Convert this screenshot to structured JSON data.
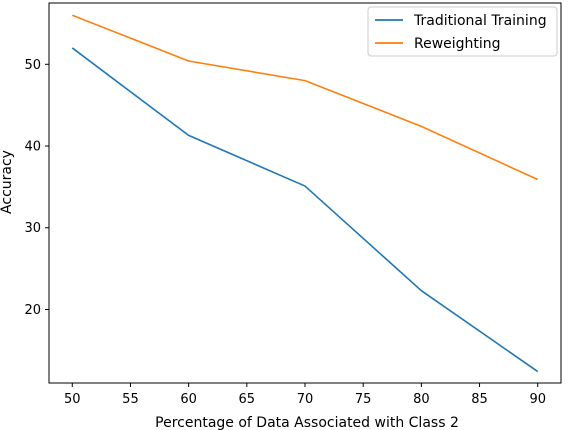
{
  "chart_data": {
    "type": "line",
    "title": "",
    "xlabel": "Percentage of Data Associated with Class 2",
    "ylabel": "Accuracy",
    "xlim": [
      48,
      92
    ],
    "ylim": [
      11,
      57.5
    ],
    "xticks": [
      50,
      55,
      60,
      65,
      70,
      75,
      80,
      85,
      90
    ],
    "yticks": [
      20,
      30,
      40,
      50
    ],
    "grid": false,
    "legend": "top-right",
    "x": [
      50,
      60,
      70,
      80,
      90
    ],
    "series": [
      {
        "name": "Traditional Training",
        "color": "#1f77b4",
        "values": [
          52.0,
          41.3,
          35.1,
          22.3,
          12.4
        ]
      },
      {
        "name": "Reweighting",
        "color": "#ff7f0e",
        "values": [
          56.0,
          50.4,
          48.0,
          42.4,
          35.9
        ]
      }
    ]
  }
}
